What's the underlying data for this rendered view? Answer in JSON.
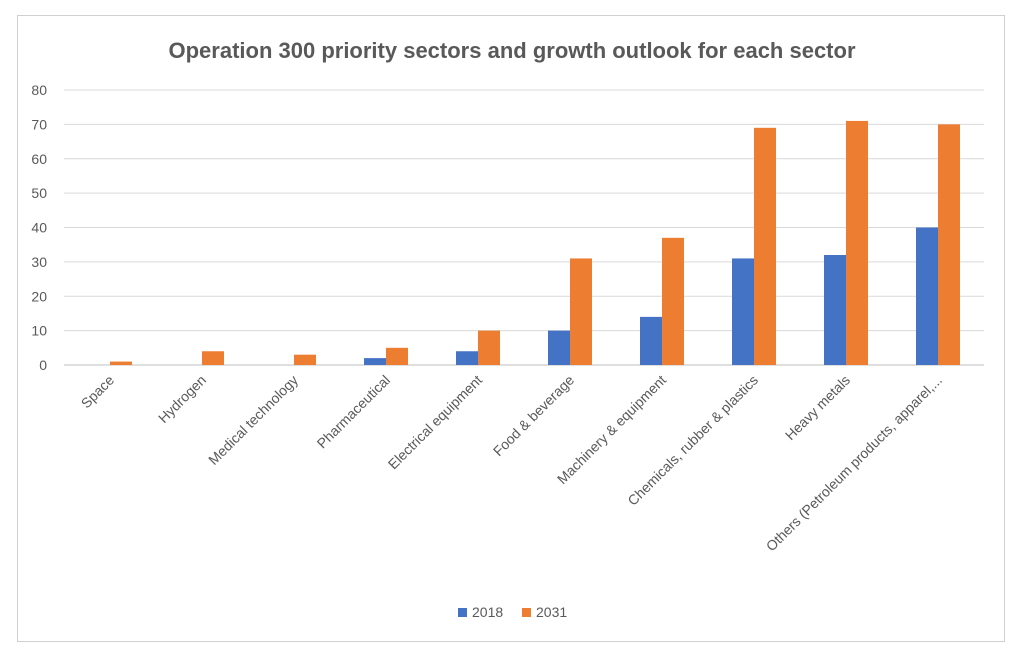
{
  "chart_data": {
    "type": "bar",
    "title": "Operation 300 priority sectors and growth outlook for each sector",
    "xlabel": "",
    "ylabel": "",
    "ylim": [
      0,
      80
    ],
    "yticks": [
      0,
      10,
      20,
      30,
      40,
      50,
      60,
      70,
      80
    ],
    "grid": true,
    "legend_position": "bottom",
    "categories": [
      "Space",
      "Hydrogen",
      "Medical technology",
      "Pharmaceutical",
      "Electrical equipment",
      "Food & beverage",
      "Machinery & equipment",
      "Chemicals, rubber & plastics",
      "Heavy metals",
      "Others (Petroleum products, apparel,..."
    ],
    "series": [
      {
        "name": "2018",
        "color": "#4472C4",
        "values": [
          0,
          0,
          0,
          2,
          4,
          10,
          14,
          31,
          32,
          40
        ]
      },
      {
        "name": "2031",
        "color": "#ED7D31",
        "values": [
          1,
          4,
          3,
          5,
          10,
          31,
          37,
          69,
          71,
          70
        ]
      }
    ]
  }
}
